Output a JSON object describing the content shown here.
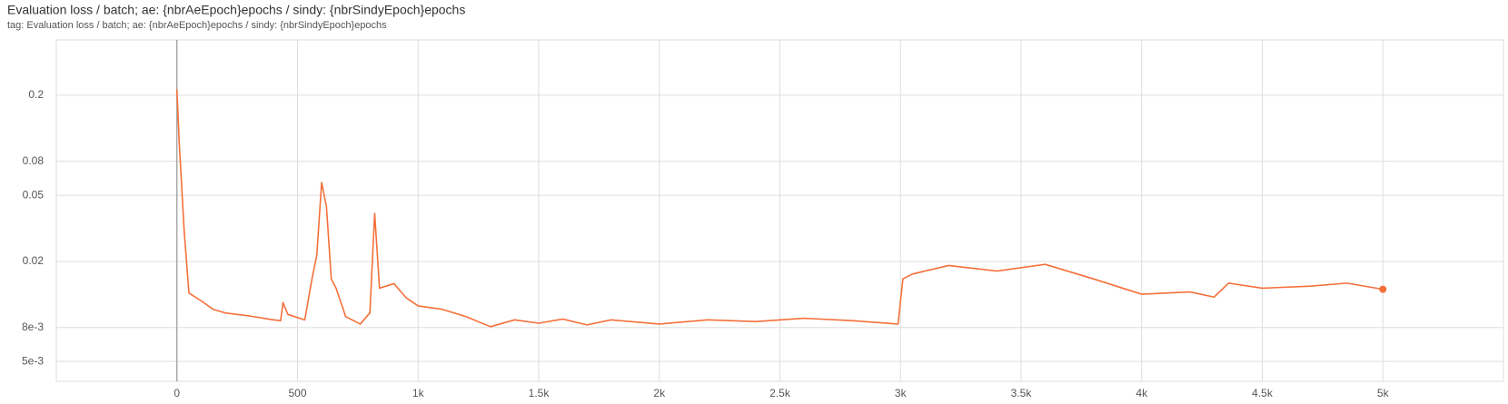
{
  "chart_data": {
    "type": "line",
    "title": "Evaluation loss / batch; ae: {nbrAeEpoch}epochs / sindy: {nbrSindyEpoch}epochs",
    "subtitle": "tag: Evaluation loss / batch; ae: {nbrAeEpoch}epochs / sindy: {nbrSindyEpoch}epochs",
    "x": [
      0,
      10,
      30,
      50,
      100,
      150,
      200,
      300,
      400,
      430,
      440,
      460,
      530,
      560,
      580,
      600,
      620,
      640,
      660,
      700,
      760,
      800,
      820,
      840,
      900,
      950,
      1000,
      1100,
      1200,
      1300,
      1400,
      1500,
      1600,
      1700,
      1800,
      2000,
      2200,
      2400,
      2600,
      2800,
      2990,
      3010,
      3050,
      3200,
      3400,
      3600,
      3800,
      4000,
      4200,
      4300,
      4360,
      4500,
      4700,
      4850,
      5000
    ],
    "series": [
      {
        "color": "#f4703a",
        "values": [
          0.217,
          0.101,
          0.0306,
          0.0129,
          0.0116,
          0.0103,
          0.0098,
          0.0094,
          0.0089,
          0.0088,
          0.0113,
          0.0096,
          0.0089,
          0.0157,
          0.0219,
          0.0596,
          0.0427,
          0.0157,
          0.0138,
          0.0093,
          0.0084,
          0.0098,
          0.0389,
          0.0138,
          0.0147,
          0.0121,
          0.0108,
          0.0103,
          0.0093,
          0.0081,
          0.0089,
          0.0085,
          0.009,
          0.0083,
          0.0089,
          0.0084,
          0.0089,
          0.0087,
          0.0091,
          0.0088,
          0.0084,
          0.0157,
          0.0168,
          0.0189,
          0.0175,
          0.0192,
          0.0157,
          0.0127,
          0.0131,
          0.0122,
          0.0148,
          0.0138,
          0.0142,
          0.0148,
          0.0136
        ]
      }
    ],
    "xlim": [
      -500,
      5500
    ],
    "xticks": [
      0,
      500,
      {
        "value": 1000,
        "label": "1k"
      },
      {
        "value": 1500,
        "label": "1.5k"
      },
      {
        "value": 2000,
        "label": "2k"
      },
      {
        "value": 2500,
        "label": "2.5k"
      },
      {
        "value": 3000,
        "label": "3k"
      },
      {
        "value": 3500,
        "label": "3.5k"
      },
      {
        "value": 4000,
        "label": "4k"
      },
      {
        "value": 4500,
        "label": "4.5k"
      },
      {
        "value": 5000,
        "label": "5k"
      }
    ],
    "ylim": [
      0.0038,
      0.43
    ],
    "yscale": "log",
    "yticks": [
      {
        "value": 0.005,
        "label": "5e-3"
      },
      {
        "value": 0.008,
        "label": "8e-3"
      },
      0.02,
      0.05,
      0.08,
      0.2
    ],
    "grid": true
  }
}
